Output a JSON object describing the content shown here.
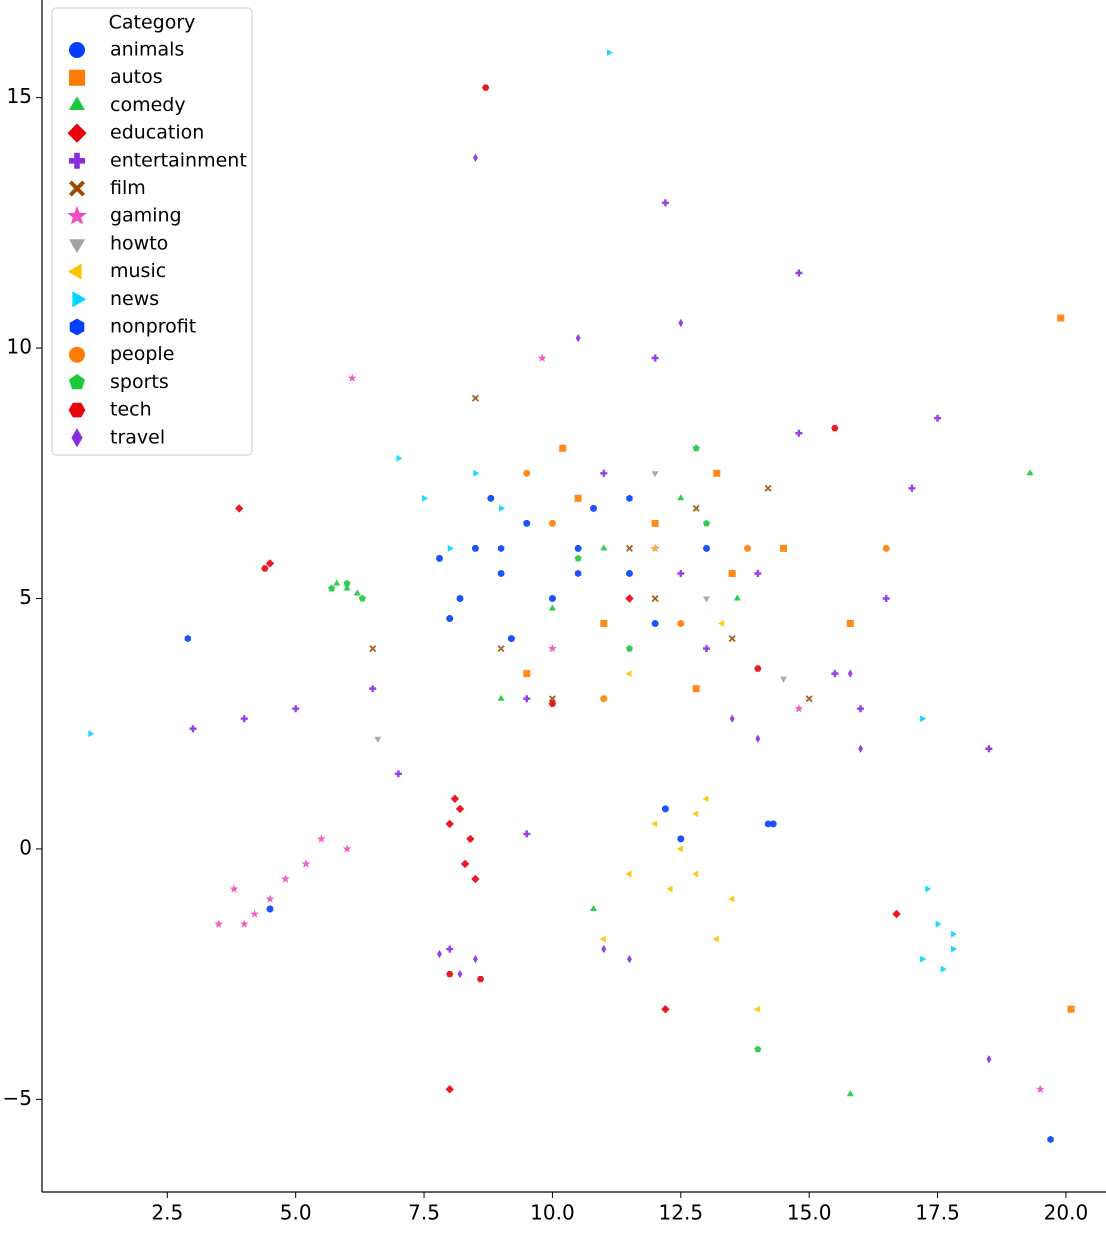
{
  "chart_data": {
    "type": "scatter",
    "legend_title": "Category",
    "legend": "upper left",
    "xlim": [
      0.06,
      20.78
    ],
    "ylim": [
      -6.85,
      16.95
    ],
    "xticks": [
      2.5,
      {
        "value": 5,
        "label": "5.0"
      },
      7.5,
      {
        "value": 10,
        "label": "10.0"
      },
      12.5,
      {
        "value": 15,
        "label": "15.0"
      },
      17.5,
      {
        "value": 20,
        "label": "20.0"
      }
    ],
    "yticks": [
      {
        "value": -5,
        "label": "−5"
      },
      0,
      5,
      10,
      15
    ],
    "series": [
      {
        "name": "animals",
        "color": "#023eff",
        "marker": "o",
        "x": [
          8.5,
          9,
          8.2,
          9.5,
          10,
          8.8,
          10.5,
          12.5,
          12.2,
          11.5,
          13,
          9.2,
          7.8,
          12,
          4.5,
          14.3,
          10.8,
          8
        ],
        "y": [
          6,
          5.5,
          5,
          6.5,
          5,
          7,
          6,
          0.2,
          0.8,
          5.5,
          6,
          4.2,
          5.8,
          4.5,
          -1.2,
          0.5,
          6.8,
          4.6
        ]
      },
      {
        "name": "autos",
        "color": "#ff7c00",
        "marker": "s",
        "x": [
          10.5,
          12,
          13.5,
          11,
          9.5,
          14.5,
          19.9,
          20.1,
          15.8,
          12.8,
          10.2,
          13.2
        ],
        "y": [
          7,
          6.5,
          5.5,
          4.5,
          3.5,
          6,
          10.6,
          -3.2,
          4.5,
          3.2,
          8,
          7.5
        ]
      },
      {
        "name": "comedy",
        "color": "#1ac938",
        "marker": "^",
        "x": [
          6,
          5.8,
          6.2,
          11,
          12.5,
          10,
          13.6,
          10.8,
          19.3,
          15.8,
          9
        ],
        "y": [
          5.2,
          5.3,
          5.1,
          6,
          7,
          4.8,
          5,
          -1.2,
          7.5,
          -4.9,
          3
        ]
      },
      {
        "name": "education",
        "color": "#e8000b",
        "marker": "D",
        "x": [
          8.2,
          8,
          8.4,
          8.3,
          8.1,
          8.5,
          4.5,
          3.9,
          11.5,
          8,
          16.7,
          12.2
        ],
        "y": [
          0.8,
          0.5,
          0.2,
          -0.3,
          1,
          -0.6,
          5.7,
          6.8,
          5,
          -4.8,
          -1.3,
          -3.2
        ]
      },
      {
        "name": "entertainment",
        "color": "#8b2be2",
        "marker": "P",
        "x": [
          11,
          12.5,
          13,
          14,
          9.5,
          6.5,
          5,
          4,
          15.5,
          16.5,
          17,
          14.8,
          12,
          7,
          9.5,
          8,
          18.5,
          16,
          3,
          12.2,
          14.8,
          17.5
        ],
        "y": [
          7.5,
          5.5,
          4,
          5.5,
          3,
          3.2,
          2.8,
          2.6,
          3.5,
          5,
          7.2,
          8.3,
          9.8,
          1.5,
          0.3,
          -2,
          2,
          2.8,
          2.4,
          12.9,
          11.5,
          8.6
        ]
      },
      {
        "name": "film",
        "color": "#9f4800",
        "marker": "X",
        "x": [
          11.5,
          12,
          10,
          13.5,
          9,
          12.8,
          15,
          14.2,
          6.5,
          8.5
        ],
        "y": [
          6,
          5,
          3,
          4.2,
          4,
          6.8,
          3,
          7.2,
          4,
          9
        ]
      },
      {
        "name": "gaming",
        "color": "#f14cc1",
        "marker": "*",
        "x": [
          4.5,
          4.2,
          3.8,
          4.8,
          5.5,
          3.5,
          4,
          5.2,
          6,
          10,
          12,
          9.8,
          6.1,
          19.5,
          14.8
        ],
        "y": [
          -1,
          -1.3,
          -0.8,
          -0.6,
          0.2,
          -1.5,
          -1.5,
          -0.3,
          0,
          4,
          6,
          9.8,
          9.4,
          -4.8,
          2.8
        ]
      },
      {
        "name": "howto",
        "color": "#a3a3a3",
        "marker": "v",
        "x": [
          6.6,
          12,
          13,
          14.5
        ],
        "y": [
          2.2,
          7.5,
          5,
          3.4
        ]
      },
      {
        "name": "music",
        "color": "#ffc400",
        "marker": "<",
        "x": [
          12.5,
          12.8,
          12,
          13,
          12.3,
          13.5,
          11.5,
          11,
          12.8,
          12,
          13.3,
          11.5,
          13.2,
          14
        ],
        "y": [
          0,
          -0.5,
          0.5,
          1,
          -0.8,
          -1,
          -0.5,
          -1.8,
          0.7,
          6,
          4.5,
          3.5,
          -1.8,
          -3.2
        ]
      },
      {
        "name": "news",
        "color": "#00d7ff",
        "marker": ">",
        "x": [
          17.5,
          17.8,
          17.3,
          17.6,
          17.8,
          17.2,
          8,
          7.5,
          8.5,
          7,
          9,
          1,
          17.2,
          11.1
        ],
        "y": [
          -1.5,
          -2,
          -0.8,
          -2.4,
          -1.7,
          -2.2,
          6,
          7,
          7.5,
          7.8,
          6.8,
          2.3,
          2.6,
          15.9
        ]
      },
      {
        "name": "nonprofit",
        "color": "#023eff",
        "marker": "h",
        "x": [
          9,
          10.5,
          11.5,
          14.2,
          2.9,
          19.7
        ],
        "y": [
          6,
          5.5,
          7,
          0.5,
          4.2,
          -5.8
        ]
      },
      {
        "name": "people",
        "color": "#ff7c00",
        "marker": "o",
        "x": [
          10,
          12.5,
          13.8,
          9.5,
          16.5,
          11
        ],
        "y": [
          6.5,
          4.5,
          6,
          7.5,
          6,
          3
        ]
      },
      {
        "name": "sports",
        "color": "#1ac938",
        "marker": "p",
        "x": [
          6,
          6.3,
          5.7,
          10.5,
          13,
          11.5,
          14,
          12.8
        ],
        "y": [
          5.3,
          5,
          5.2,
          5.8,
          6.5,
          4,
          -4,
          8
        ]
      },
      {
        "name": "tech",
        "color": "#e8000b",
        "marker": "H",
        "x": [
          8,
          8.6,
          4.4,
          15.5,
          14,
          10,
          8.7
        ],
        "y": [
          -2.5,
          -2.6,
          5.6,
          8.4,
          3.6,
          2.9,
          15.2
        ]
      },
      {
        "name": "travel",
        "color": "#8b2be2",
        "marker": "d",
        "x": [
          8.5,
          8.2,
          7.8,
          11,
          11.5,
          15.8,
          16,
          14,
          13.5,
          18.5,
          10.5,
          12.5,
          8.5
        ],
        "y": [
          -2.2,
          -2.5,
          -2.1,
          -2,
          -2.2,
          3.5,
          2,
          2.2,
          2.6,
          -4.2,
          10.2,
          10.5,
          13.8
        ]
      }
    ]
  }
}
